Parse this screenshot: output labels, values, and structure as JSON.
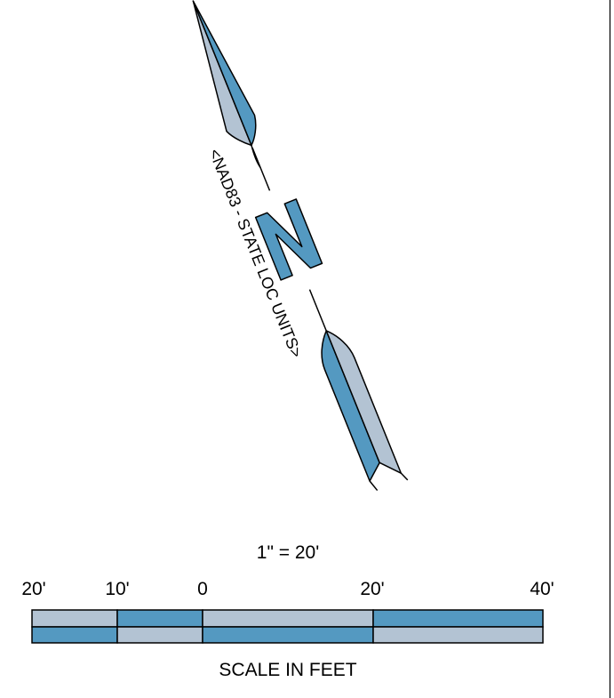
{
  "north_arrow": {
    "letter": "N",
    "datum_label": "<NAD83 - STATE LOC UNITS>"
  },
  "scale_bar": {
    "ratio_label": "1\" = 20'",
    "ticks": [
      "20'",
      "10'",
      "0",
      "20'",
      "40'"
    ],
    "caption": "SCALE IN FEET"
  },
  "colors": {
    "dark_blue": "#5499c1",
    "light_blue": "#b3c3d3",
    "outline": "#000000"
  }
}
